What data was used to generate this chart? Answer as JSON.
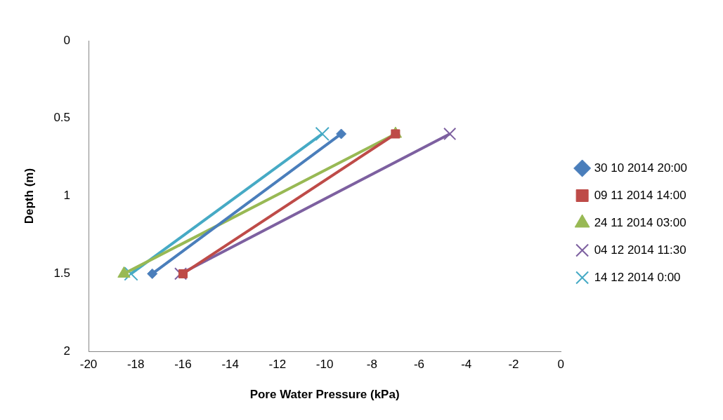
{
  "chart_data": {
    "type": "line",
    "xlabel": "Pore Water Pressure (kPa)",
    "ylabel": "Depth (m)",
    "xlim": [
      -20,
      0
    ],
    "xticks": [
      -20,
      -18,
      -16,
      -14,
      -12,
      -10,
      -8,
      -6,
      -4,
      -2,
      0
    ],
    "ylim": [
      2,
      0
    ],
    "yticks": [
      0,
      0.5,
      1,
      1.5,
      2
    ],
    "grid": false,
    "legend": "right",
    "series": [
      {
        "name": "30 10 2014 20:00",
        "color": "#4a7ebb",
        "marker": "diamond",
        "x": [
          -9.3,
          -17.3
        ],
        "values": [
          0.6,
          1.5
        ]
      },
      {
        "name": "09 11 2014 14:00",
        "color": "#be4b48",
        "marker": "square",
        "x": [
          -7.0,
          -16.0
        ],
        "values": [
          0.6,
          1.5
        ]
      },
      {
        "name": "24 11 2014 03:00",
        "color": "#98b954",
        "marker": "triangle",
        "x": [
          -7.0,
          -18.5
        ],
        "values": [
          0.6,
          1.5
        ]
      },
      {
        "name": "04 12 2014 11:30",
        "color": "#7d60a0",
        "marker": "cross",
        "x": [
          -4.7,
          -16.1
        ],
        "values": [
          0.6,
          1.5
        ]
      },
      {
        "name": "14 12 2014 0:00",
        "color": "#46aac5",
        "marker": "cross",
        "x": [
          -10.1,
          -18.2
        ],
        "values": [
          0.6,
          1.5
        ]
      }
    ]
  }
}
